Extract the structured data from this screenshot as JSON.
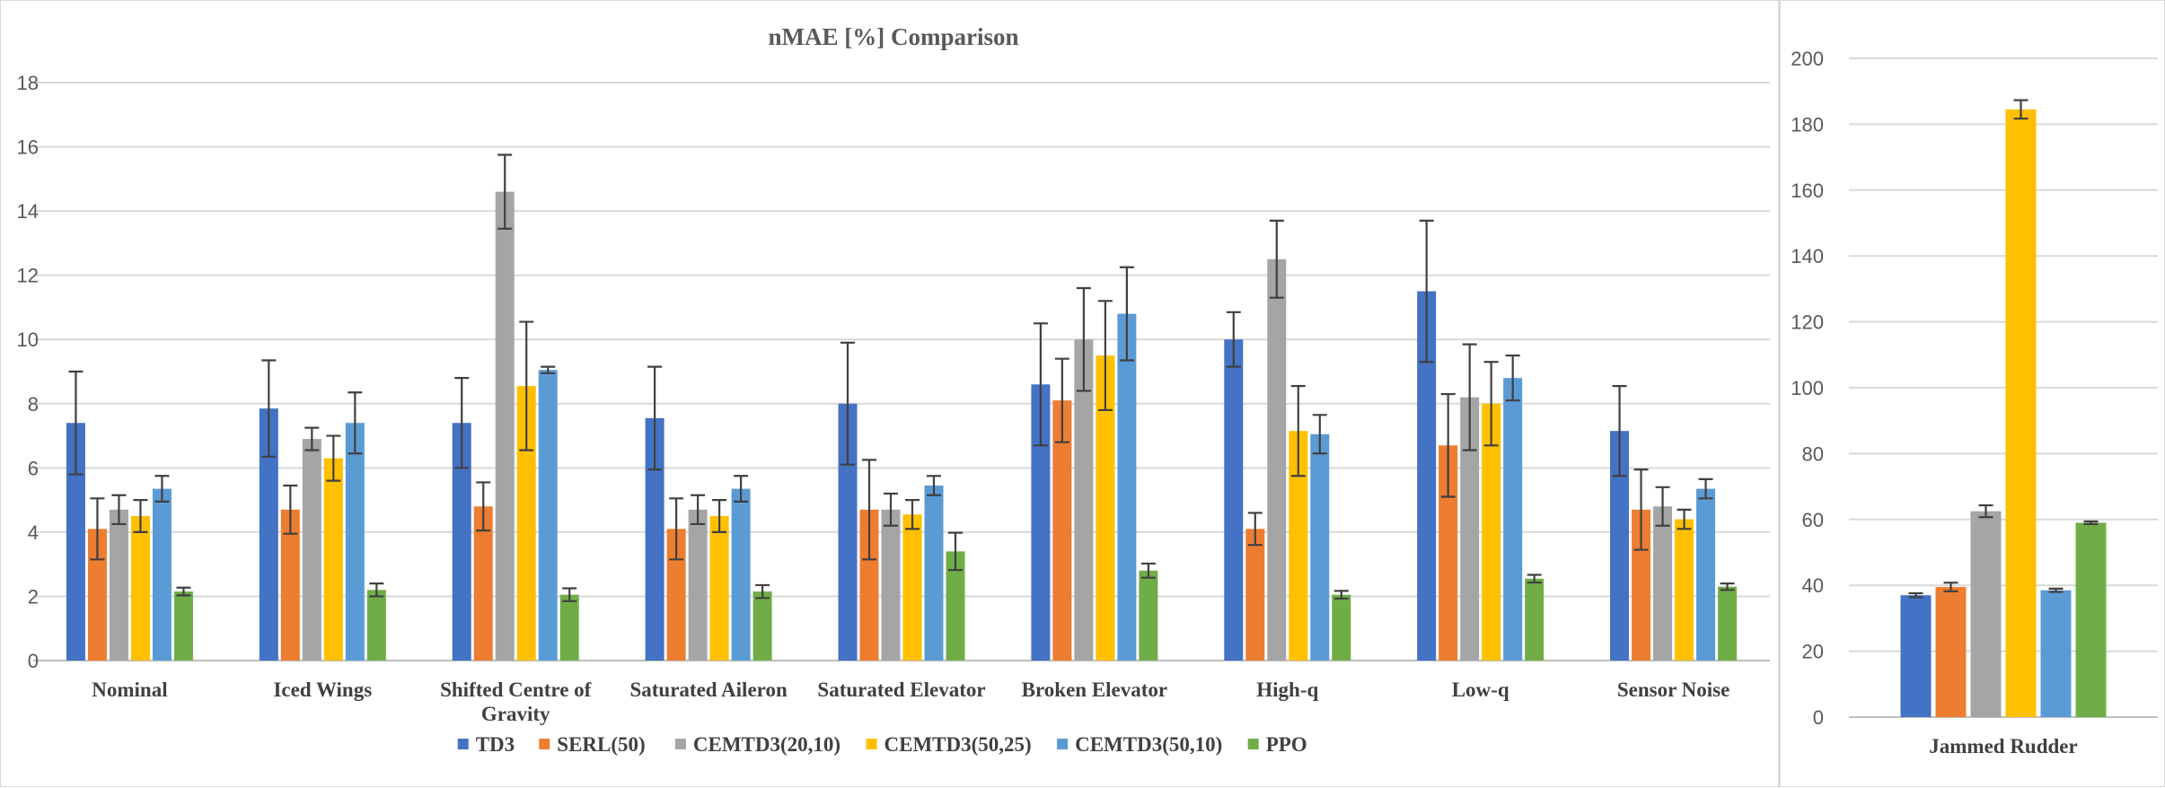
{
  "chart_data": [
    {
      "type": "bar",
      "title": "nMAE [%] Comparison",
      "ylim": [
        0,
        18
      ],
      "yticks": [
        0,
        2,
        4,
        6,
        8,
        10,
        12,
        14,
        16,
        18
      ],
      "grid": true,
      "legend_position": "bottom",
      "categories": [
        "Nominal",
        "Iced Wings",
        "Shifted Centre of Gravity",
        "Saturated Aileron",
        "Saturated Elevator",
        "Broken Elevator",
        "High-q",
        "Low-q",
        "Sensor Noise"
      ],
      "category_lines": [
        [
          "Nominal"
        ],
        [
          "Iced Wings"
        ],
        [
          "Shifted Centre of",
          "Gravity"
        ],
        [
          "Saturated Aileron"
        ],
        [
          "Saturated Elevator"
        ],
        [
          "Broken Elevator"
        ],
        [
          "High-q"
        ],
        [
          "Low-q"
        ],
        [
          "Sensor Noise"
        ]
      ],
      "series": [
        {
          "name": "TD3",
          "color": "#4472c4",
          "values": [
            7.4,
            7.85,
            7.4,
            7.55,
            8.0,
            8.6,
            10.0,
            11.5,
            7.15
          ],
          "errors": [
            1.6,
            1.5,
            1.4,
            1.6,
            1.9,
            1.9,
            0.85,
            2.2,
            1.4
          ]
        },
        {
          "name": "SERL(50)",
          "color": "#ed7d31",
          "values": [
            4.1,
            4.7,
            4.8,
            4.1,
            4.7,
            8.1,
            4.1,
            6.7,
            4.7
          ],
          "errors": [
            0.95,
            0.75,
            0.75,
            0.95,
            1.55,
            1.3,
            0.5,
            1.6,
            1.25
          ]
        },
        {
          "name": "CEMTD3(20,10)",
          "color": "#a5a5a5",
          "values": [
            4.7,
            6.9,
            14.6,
            4.7,
            4.7,
            10.0,
            12.5,
            8.2,
            4.8
          ],
          "errors": [
            0.45,
            0.35,
            1.15,
            0.45,
            0.5,
            1.6,
            1.2,
            1.65,
            0.6
          ]
        },
        {
          "name": "CEMTD3(50,25)",
          "color": "#ffc000",
          "values": [
            4.5,
            6.3,
            8.55,
            4.5,
            4.55,
            9.5,
            7.15,
            8.0,
            4.4
          ],
          "errors": [
            0.5,
            0.7,
            2.0,
            0.5,
            0.45,
            1.7,
            1.4,
            1.3,
            0.3
          ]
        },
        {
          "name": "CEMTD3(50,10)",
          "color": "#5b9bd5",
          "values": [
            5.35,
            7.4,
            9.05,
            5.35,
            5.45,
            10.8,
            7.05,
            8.8,
            5.35
          ],
          "errors": [
            0.4,
            0.95,
            0.1,
            0.4,
            0.3,
            1.45,
            0.6,
            0.7,
            0.3
          ]
        },
        {
          "name": "PPO",
          "color": "#70ad47",
          "values": [
            2.15,
            2.2,
            2.05,
            2.15,
            3.4,
            2.8,
            2.05,
            2.55,
            2.3
          ],
          "errors": [
            0.12,
            0.2,
            0.2,
            0.2,
            0.58,
            0.22,
            0.12,
            0.12,
            0.1
          ]
        }
      ]
    },
    {
      "type": "bar",
      "title": "",
      "ylim": [
        0,
        200
      ],
      "yticks": [
        0,
        20,
        40,
        60,
        80,
        100,
        120,
        140,
        160,
        180,
        200
      ],
      "grid": true,
      "categories": [
        "Jammed Rudder"
      ],
      "series": [
        {
          "name": "TD3",
          "color": "#4472c4",
          "values": [
            37
          ],
          "errors": [
            0.6
          ]
        },
        {
          "name": "SERL(50)",
          "color": "#ed7d31",
          "values": [
            39.5
          ],
          "errors": [
            1.3
          ]
        },
        {
          "name": "CEMTD3(20,10)",
          "color": "#a5a5a5",
          "values": [
            62.5
          ],
          "errors": [
            1.8
          ]
        },
        {
          "name": "CEMTD3(50,25)",
          "color": "#ffc000",
          "values": [
            184.5
          ],
          "errors": [
            2.8
          ]
        },
        {
          "name": "CEMTD3(50,10)",
          "color": "#5b9bd5",
          "values": [
            38.5
          ],
          "errors": [
            0.5
          ]
        },
        {
          "name": "PPO",
          "color": "#70ad47",
          "values": [
            59
          ],
          "errors": [
            0.4
          ]
        }
      ]
    }
  ]
}
